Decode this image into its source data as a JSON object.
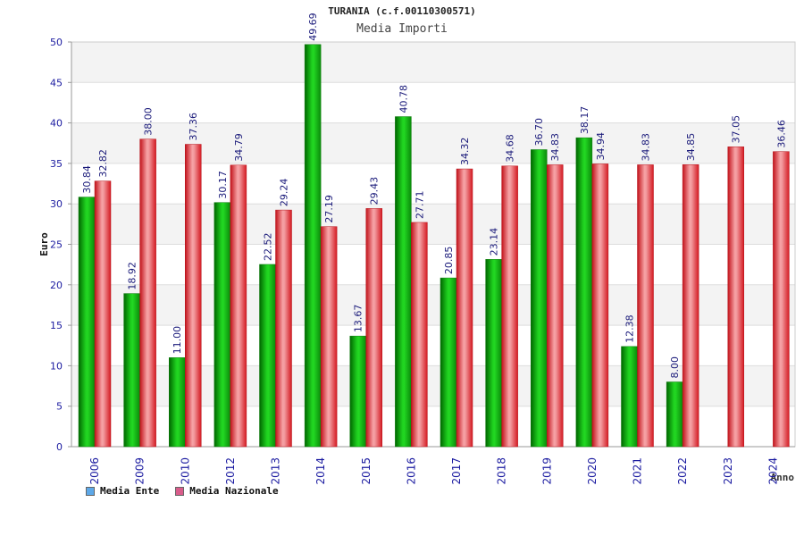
{
  "chart_data": {
    "type": "bar",
    "title": "TURANIA (c.f.00110300571)",
    "subtitle": "Media Importi",
    "ylabel": "Euro",
    "xlabel": "Anno",
    "ylim": [
      0,
      50
    ],
    "yticks": [
      0,
      5,
      10,
      15,
      20,
      25,
      30,
      35,
      40,
      45,
      50
    ],
    "grid": true,
    "legend_position": "bottom-left",
    "categories": [
      "2006",
      "2009",
      "2010",
      "2012",
      "2013",
      "2014",
      "2015",
      "2016",
      "2017",
      "2018",
      "2019",
      "2020",
      "2021",
      "2022",
      "2023",
      "2024"
    ],
    "series": [
      {
        "name": "Media Ente",
        "color": "#16b816",
        "legend_color": "#5da8e8",
        "values": [
          30.84,
          18.92,
          11.0,
          30.17,
          22.52,
          49.69,
          13.67,
          40.78,
          20.85,
          23.14,
          36.7,
          38.17,
          12.38,
          8.0,
          null,
          null
        ],
        "labels": [
          "30.84",
          "18.92",
          "11.00",
          "30.17",
          "22.52",
          "49.69",
          "13.67",
          "40.78",
          "20.85",
          "23.14",
          "36.70",
          "38.17",
          "12.38",
          "8.00",
          "",
          ""
        ]
      },
      {
        "name": "Media Nazionale",
        "color": "#e8212b",
        "legend_color": "#d85c8a",
        "values": [
          32.82,
          38.0,
          37.36,
          34.79,
          29.24,
          27.19,
          29.43,
          27.71,
          34.32,
          34.68,
          34.83,
          34.94,
          34.83,
          34.85,
          37.05,
          36.46
        ],
        "labels": [
          "32.82",
          "38.00",
          "37.36",
          "34.79",
          "29.24",
          "27.19",
          "29.43",
          "27.71",
          "34.32",
          "34.68",
          "34.83",
          "34.94",
          "34.83",
          "34.85",
          "37.05",
          "36.46"
        ]
      }
    ]
  }
}
